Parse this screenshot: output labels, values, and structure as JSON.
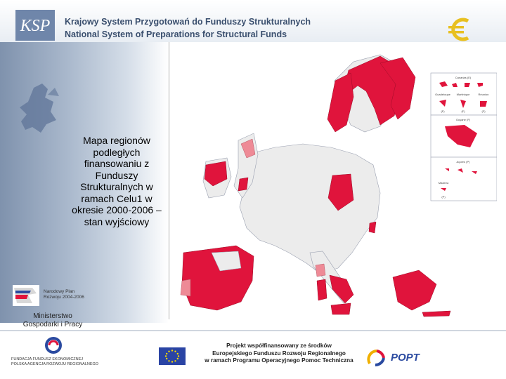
{
  "header": {
    "logo_text": "KSP",
    "title_pl": "Krajowy System Przygotowań do Funduszy Strukturalnych",
    "title_en": "National System of Preparations for Structural Funds"
  },
  "caption": "Mapa regionów podległych finansowaniu z Funduszy Strukturalnych w ramach Celu1 w okresie 2000-2006 – stan wyjściowy",
  "inset_labels": {
    "canarias": "Canarias (E)",
    "guadeloupe": "Guadeloupe",
    "martinique": "Martinique",
    "reunion": "Réunion",
    "guyane": "Guyane (F)",
    "acores": "Açores (P)",
    "madeira": "Madeira",
    "f1": "(F)",
    "f2": "(F)",
    "f3": "(F)",
    "p": "(P)"
  },
  "npr": {
    "line1": "Narodowy Plan",
    "line2": "Rozwoju 2004-2006"
  },
  "ministry": {
    "line1": "Ministerstwo",
    "line2": "Gospodarki i Pracy"
  },
  "foundation": {
    "line1": "FUNDACJA FUNDUSZ EKONOMICZNEJ",
    "line2": "POLSKA AGENCJA ROZWOJU REGIONALNEGO"
  },
  "project": {
    "line1": "Projekt współfinansowany ze środków",
    "line2": "Europejskiego Funduszu Rozwoju Regionalnego",
    "line3": "w ramach Programu Operacyjnego Pomoc Techniczna"
  },
  "popt": "POPT",
  "colors": {
    "objective1": "#e0143c",
    "phasing_out": "#ee8a96",
    "non_eligible": "#ececec",
    "header_text": "#3a4f6e"
  }
}
